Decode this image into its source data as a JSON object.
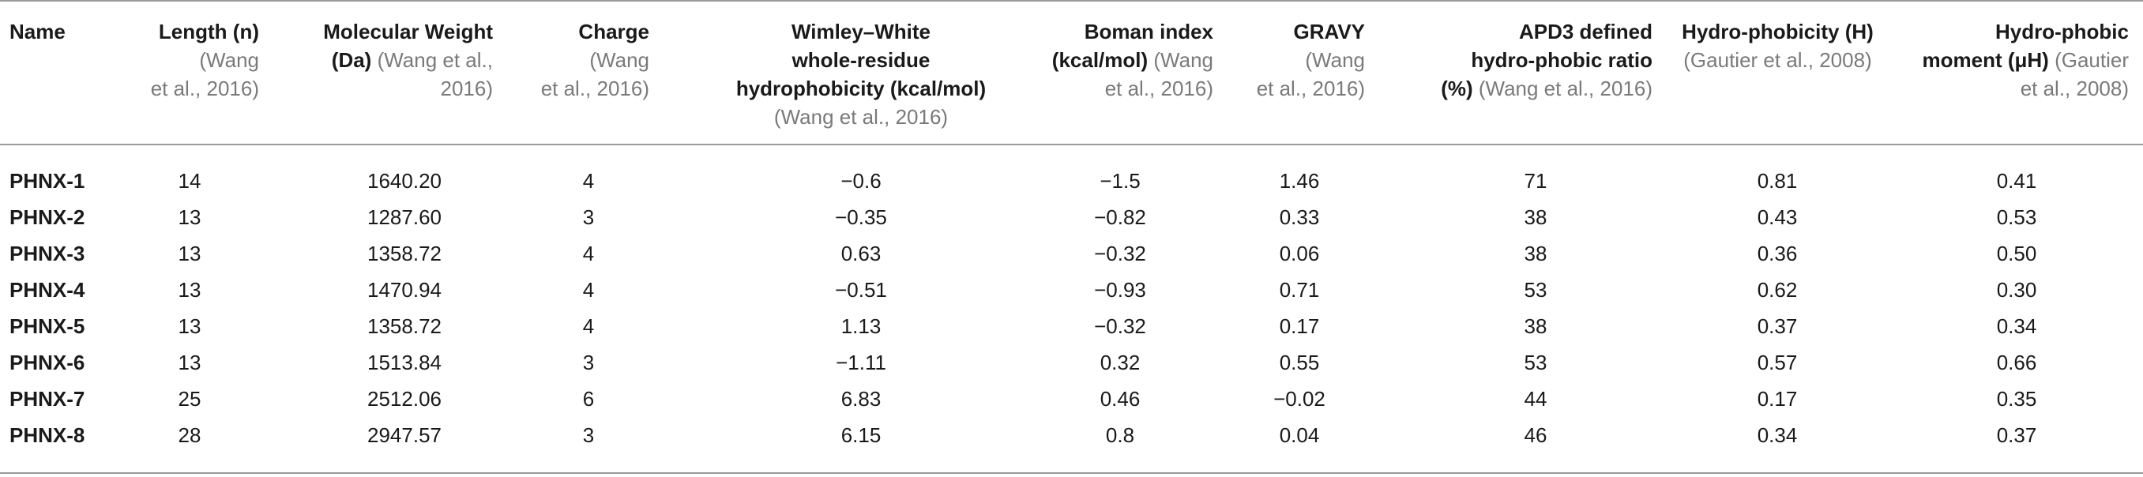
{
  "header": {
    "name": "Name",
    "length_b": "Length (n)",
    "length_c1": " (Wang",
    "length_c2": "et al., 2016)",
    "mw_b1": "Molecular Weight",
    "mw_b2": "(Da)",
    "mw_c1": " (Wang et al.,",
    "mw_c2": "2016)",
    "charge_b": "Charge",
    "charge_c1": " (Wang",
    "charge_c2": "et al., 2016)",
    "ww_b1": "Wimley–White",
    "ww_b2": "whole-residue",
    "ww_b3": "hydrophobicity (kcal/mol)",
    "ww_c": "(Wang et al., 2016)",
    "boman_b1": "Boman index",
    "boman_b2": "(kcal/mol)",
    "boman_c1": " (Wang",
    "boman_c2": "et al., 2016)",
    "gravy_b": "GRAVY",
    "gravy_c1": " (Wang",
    "gravy_c2": "et al., 2016)",
    "apd_b1": "APD3 defined",
    "apd_b2": "hydro-phobic ratio",
    "apd_b3": "(%)",
    "apd_c": " (Wang et al., 2016)",
    "h_b": "Hydro-phobicity (H)",
    "h_c": "(Gautier et al., 2008)",
    "uh_b1": "Hydro-phobic",
    "uh_b2": "moment (μH)",
    "uh_c1": " (Gautier",
    "uh_c2": "et al., 2008)"
  },
  "rows": [
    {
      "name": "PHNX-1",
      "length": "14",
      "mw": "1640.20",
      "charge": "4",
      "ww": "−0.6",
      "boman": "−1.5",
      "gravy": "1.46",
      "apd": "71",
      "h": "0.81",
      "uh": "0.41"
    },
    {
      "name": "PHNX-2",
      "length": "13",
      "mw": "1287.60",
      "charge": "3",
      "ww": "−0.35",
      "boman": "−0.82",
      "gravy": "0.33",
      "apd": "38",
      "h": "0.43",
      "uh": "0.53"
    },
    {
      "name": "PHNX-3",
      "length": "13",
      "mw": "1358.72",
      "charge": "4",
      "ww": "0.63",
      "boman": "−0.32",
      "gravy": "0.06",
      "apd": "38",
      "h": "0.36",
      "uh": "0.50"
    },
    {
      "name": "PHNX-4",
      "length": "13",
      "mw": "1470.94",
      "charge": "4",
      "ww": "−0.51",
      "boman": "−0.93",
      "gravy": "0.71",
      "apd": "53",
      "h": "0.62",
      "uh": "0.30"
    },
    {
      "name": "PHNX-5",
      "length": "13",
      "mw": "1358.72",
      "charge": "4",
      "ww": "1.13",
      "boman": "−0.32",
      "gravy": "0.17",
      "apd": "38",
      "h": "0.37",
      "uh": "0.34"
    },
    {
      "name": "PHNX-6",
      "length": "13",
      "mw": "1513.84",
      "charge": "3",
      "ww": "−1.11",
      "boman": "0.32",
      "gravy": "0.55",
      "apd": "53",
      "h": "0.57",
      "uh": "0.66"
    },
    {
      "name": "PHNX-7",
      "length": "25",
      "mw": "2512.06",
      "charge": "6",
      "ww": "6.83",
      "boman": "0.46",
      "gravy": "−0.02",
      "apd": "44",
      "h": "0.17",
      "uh": "0.35"
    },
    {
      "name": "PHNX-8",
      "length": "28",
      "mw": "2947.57",
      "charge": "3",
      "ww": "6.15",
      "boman": "0.8",
      "gravy": "0.04",
      "apd": "46",
      "h": "0.34",
      "uh": "0.37"
    }
  ]
}
